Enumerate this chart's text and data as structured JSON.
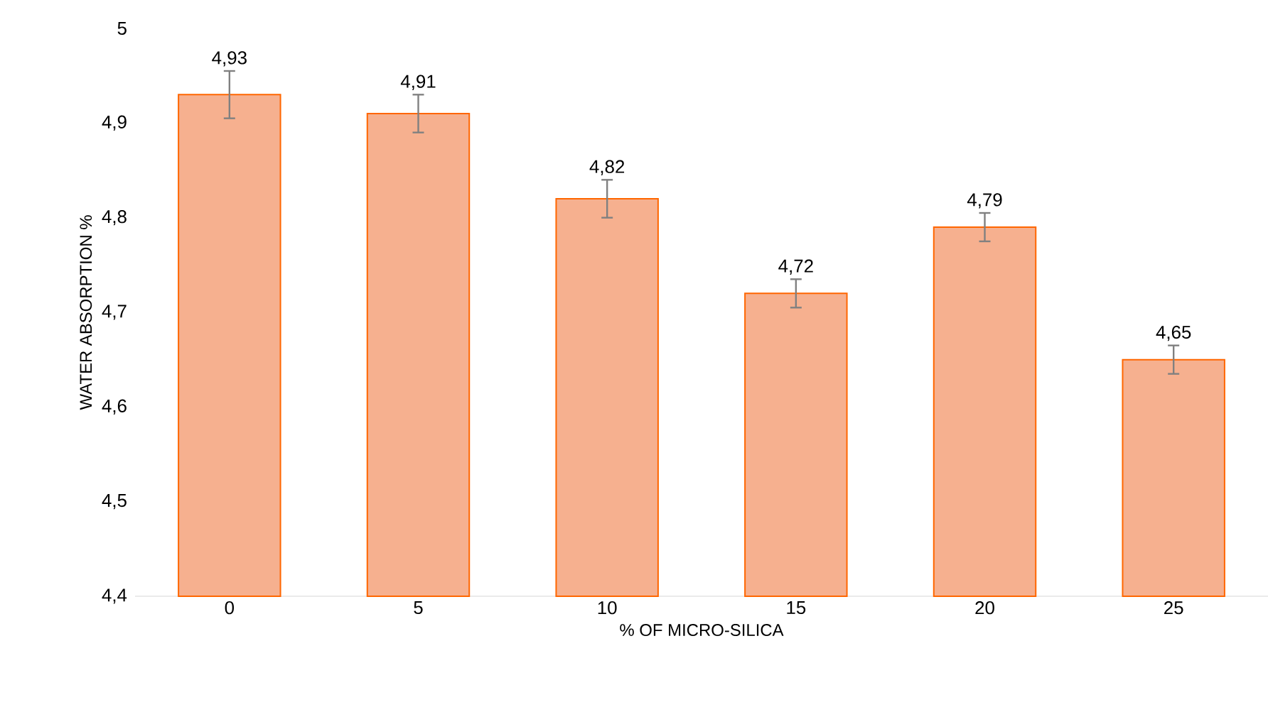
{
  "chart_data": {
    "type": "bar",
    "xlabel": "% OF MICRO-SILICA",
    "ylabel": "WATER ABSORPTION %",
    "categories": [
      "0",
      "5",
      "10",
      "15",
      "20",
      "25"
    ],
    "values": [
      4.93,
      4.91,
      4.82,
      4.72,
      4.79,
      4.65
    ],
    "errors": [
      0.025,
      0.02,
      0.02,
      0.015,
      0.015,
      0.015
    ],
    "value_labels": [
      "4,93",
      "4,91",
      "4,82",
      "4,72",
      "4,79",
      "4,65"
    ],
    "color": "#f6b08f",
    "ylim": [
      4.4,
      5.0
    ],
    "yticks": [
      {
        "value": 4.4,
        "label": "4,4"
      },
      {
        "value": 4.5,
        "label": "4,5"
      },
      {
        "value": 4.6,
        "label": "4,6"
      },
      {
        "value": 4.7,
        "label": "4,7"
      },
      {
        "value": 4.8,
        "label": "4,8"
      },
      {
        "value": 4.9,
        "label": "4,9"
      },
      {
        "value": 5.0,
        "label": "5"
      }
    ],
    "grid": false
  }
}
